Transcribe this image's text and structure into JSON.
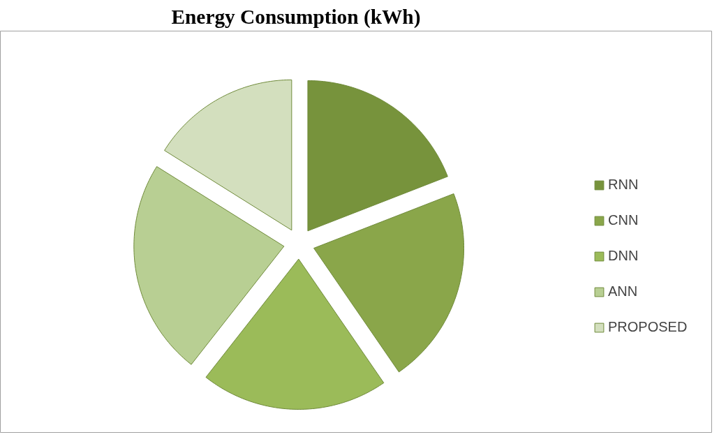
{
  "chart_data": {
    "type": "pie",
    "title": "Energy Consumption (kWh)",
    "categories": [
      "RNN",
      "CNN",
      "DNN",
      "ANN",
      "PROPOSED"
    ],
    "values": [
      19.1,
      21.3,
      20.2,
      23.3,
      16.1
    ],
    "colors": [
      "#77933c",
      "#8aa64a",
      "#9bbb59",
      "#b8cf93",
      "#d3dfbe"
    ],
    "legend": "right"
  }
}
